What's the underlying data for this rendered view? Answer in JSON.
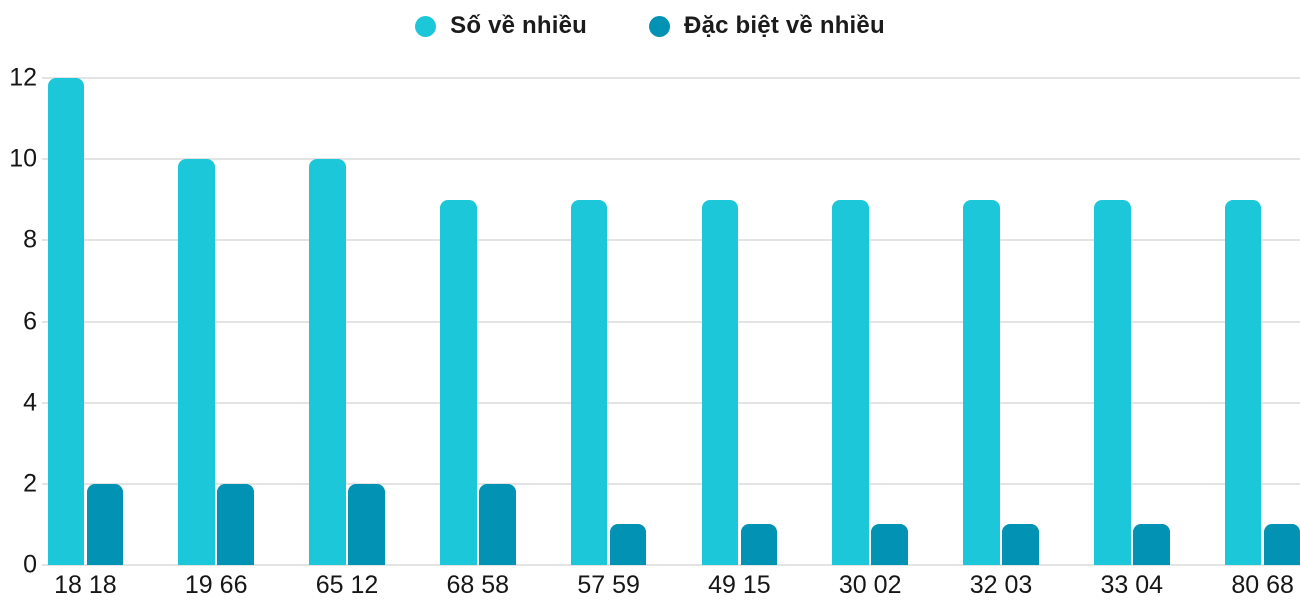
{
  "legend": {
    "items": [
      {
        "label": "Số về nhiều"
      },
      {
        "label": "Đặc biệt về nhiều"
      }
    ]
  },
  "chart_data": {
    "type": "bar",
    "title": "",
    "xlabel": "",
    "ylabel": "",
    "categories": [
      "18 18",
      "19 66",
      "65 12",
      "68 58",
      "57 59",
      "49 15",
      "30 02",
      "32 03",
      "33 04",
      "80 68"
    ],
    "series": [
      {
        "name": "Số về nhiều",
        "color": "#1CC7D9",
        "values": [
          12,
          10,
          10,
          9,
          9,
          9,
          9,
          9,
          9,
          9
        ]
      },
      {
        "name": "Đặc biệt về nhiều",
        "color": "#0292B4",
        "values": [
          2,
          2,
          2,
          2,
          1,
          1,
          1,
          1,
          1,
          1
        ]
      }
    ],
    "ylim": [
      0,
      12
    ],
    "yticks": [
      0,
      2,
      4,
      6,
      8,
      10,
      12
    ],
    "grid": true,
    "grid_color": "#E3E3E3",
    "text_color": "#161616",
    "background_color": "#FFFFFF",
    "legend_position": "top"
  }
}
